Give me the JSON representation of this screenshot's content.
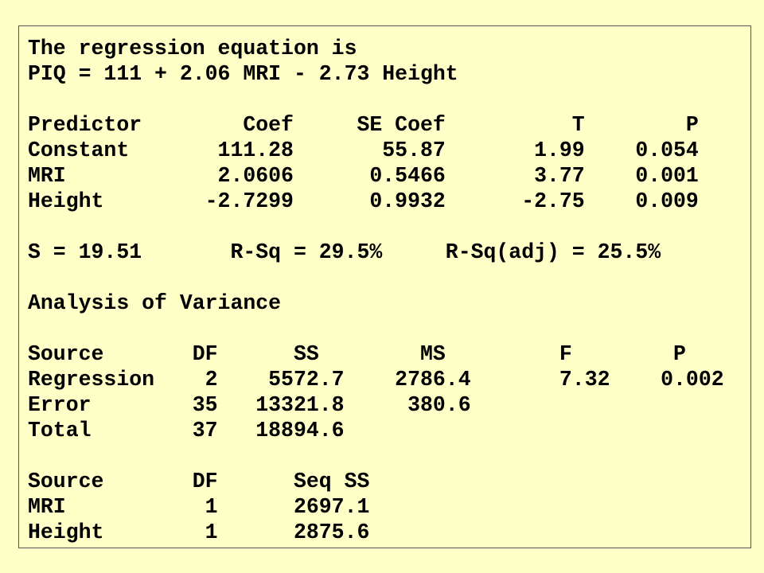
{
  "header": {
    "line1": "The regression equation is",
    "line2": "PIQ = 111 + 2.06 MRI - 2.73 Height"
  },
  "coefficients": {
    "header": "Predictor        Coef     SE Coef          T        P",
    "rows": [
      "Constant       111.28       55.87       1.99    0.054",
      "MRI            2.0606      0.5466       3.77    0.001",
      "Height        -2.7299      0.9932      -2.75    0.009"
    ]
  },
  "fit": {
    "line": "S = 19.51       R-Sq = 29.5%     R-Sq(adj) = 25.5%"
  },
  "anova": {
    "title": "Analysis of Variance",
    "header": "Source       DF      SS        MS         F        P",
    "rows": [
      "Regression    2    5572.7    2786.4       7.32    0.002",
      "Error        35   13321.8     380.6",
      "Total        37   18894.6"
    ]
  },
  "seq": {
    "header": "Source       DF      Seq SS",
    "rows": [
      "MRI           1      2697.1",
      "Height        1      2875.6"
    ]
  }
}
